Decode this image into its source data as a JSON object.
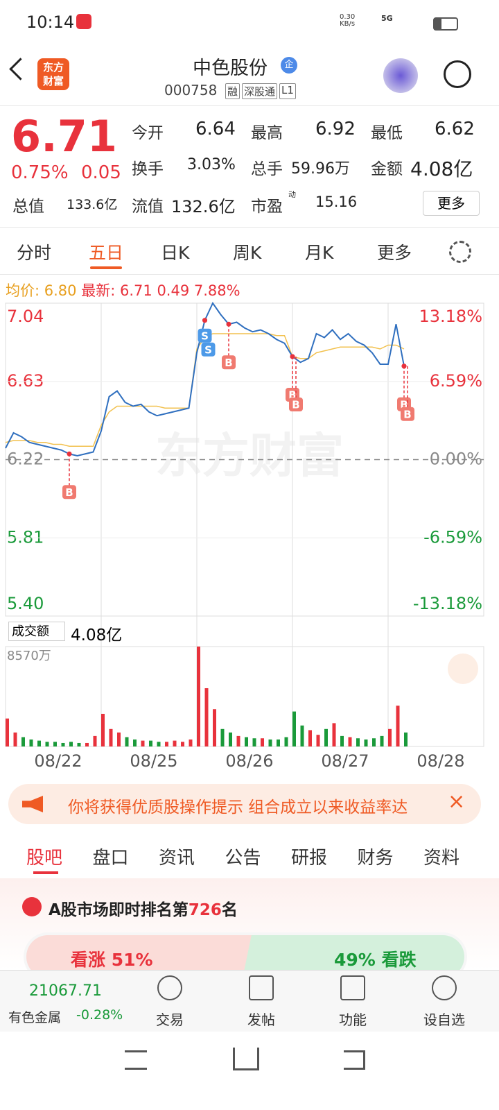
{
  "status": {
    "time": "10:14",
    "net": "0.30",
    "net_unit": "KB/s",
    "signal": "5G"
  },
  "header": {
    "logo": [
      "东方",
      "财富"
    ],
    "title": "中色股份",
    "badge": "企",
    "code": "000758",
    "tags": [
      "融",
      "深股通",
      "L1"
    ]
  },
  "quote": {
    "price": "6.71",
    "pct": "0.75%",
    "change": "0.05",
    "more": "更多",
    "fields": [
      {
        "label": "今开",
        "value": "6.64"
      },
      {
        "label": "最高",
        "value": "6.92"
      },
      {
        "label": "最低",
        "value": "6.62"
      },
      {
        "label": "换手",
        "value": "3.03%"
      },
      {
        "label": "总手",
        "value": "59.96万"
      },
      {
        "label": "金额",
        "value": "4.08亿"
      },
      {
        "label": "总值",
        "value": "133.6亿"
      },
      {
        "label": "流值",
        "value": "132.6亿"
      },
      {
        "label": "市盈",
        "sup": "动",
        "value": "15.16"
      }
    ]
  },
  "tabs": [
    "分时",
    "五日",
    "日K",
    "周K",
    "月K",
    "更多"
  ],
  "info": {
    "avg_label": "均价:",
    "avg": "6.80",
    "latest_label": "最新:",
    "latest": "6.71",
    "change": "0.49",
    "pct": "7.88%"
  },
  "watermark": "东方财富",
  "volume_header": {
    "label": "成交额",
    "total": "4.08亿"
  },
  "chart_data": [
    {
      "type": "line",
      "x": [
        0,
        1,
        2,
        3,
        4,
        5,
        6,
        7,
        8,
        9,
        10,
        11,
        12,
        13,
        14,
        15,
        16,
        17,
        18,
        19,
        20,
        21,
        22,
        23,
        24,
        25,
        26,
        27,
        28,
        29,
        30,
        31,
        32,
        33,
        34,
        35,
        36,
        37,
        38,
        39,
        40,
        41,
        42,
        43,
        44,
        45,
        46,
        47,
        48,
        49,
        50
      ],
      "xlim": [
        0,
        60
      ],
      "ylim": [
        5.4,
        7.04
      ],
      "yticks": [
        7.04,
        6.63,
        6.22,
        5.81,
        {
          "value": 5.4,
          "label": "5.40"
        }
      ],
      "y2lim": [
        -13.18,
        13.18
      ],
      "y2ticks": [
        {
          "value": 13.18,
          "label": "13.18%"
        },
        {
          "value": 6.59,
          "label": "6.59%"
        },
        {
          "value": 0,
          "label": "0.00%"
        },
        {
          "value": -6.59,
          "label": "-6.59%"
        },
        {
          "value": -13.18,
          "label": "-13.18%"
        }
      ],
      "xticks": [
        {
          "value": 6,
          "label": "08/22"
        },
        {
          "value": 18,
          "label": "08/25"
        },
        {
          "value": 30,
          "label": "08/26"
        },
        {
          "value": 42,
          "label": "08/27"
        },
        {
          "value": 54,
          "label": "08/28"
        }
      ],
      "series": [
        {
          "color": "#2f6fbf",
          "values": [
            6.28,
            6.36,
            6.34,
            6.31,
            6.3,
            6.29,
            6.28,
            6.27,
            6.25,
            6.24,
            6.25,
            6.26,
            6.37,
            6.55,
            6.58,
            6.52,
            6.5,
            6.51,
            6.47,
            6.45,
            6.46,
            6.47,
            6.48,
            6.49,
            6.78,
            6.95,
            7.04,
            6.98,
            6.93,
            6.94,
            6.91,
            6.89,
            6.9,
            6.88,
            6.85,
            6.83,
            6.76,
            6.73,
            6.75,
            6.88,
            6.86,
            6.9,
            6.85,
            6.88,
            6.84,
            6.82,
            6.78,
            6.72,
            6.72,
            6.93,
            6.71
          ]
        },
        {
          "color": "#f2c14e",
          "values": [
            6.31,
            6.32,
            6.32,
            6.32,
            6.31,
            6.31,
            6.3,
            6.3,
            6.29,
            6.29,
            6.29,
            6.29,
            6.4,
            6.47,
            6.5,
            6.5,
            6.5,
            6.5,
            6.5,
            6.5,
            6.49,
            6.49,
            6.49,
            6.49,
            6.8,
            6.86,
            6.88,
            6.88,
            6.88,
            6.88,
            6.88,
            6.88,
            6.88,
            6.88,
            6.87,
            6.87,
            6.76,
            6.75,
            6.75,
            6.78,
            6.79,
            6.8,
            6.81,
            6.81,
            6.81,
            6.81,
            6.81,
            6.8,
            6.82,
            6.82,
            6.8
          ]
        }
      ],
      "markers": [
        {
          "label": "B",
          "x": 8
        },
        {
          "label": "S",
          "x": 25
        },
        {
          "label": "S",
          "x": 25
        },
        {
          "label": "B",
          "x": 28
        },
        {
          "label": "B",
          "x": 36
        },
        {
          "label": "B",
          "x": 36
        },
        {
          "label": "B",
          "x": 50
        },
        {
          "label": "B",
          "x": 50
        }
      ]
    },
    {
      "type": "bar",
      "x": [
        0,
        1,
        2,
        3,
        4,
        5,
        6,
        7,
        8,
        9,
        10,
        11,
        12,
        13,
        14,
        15,
        16,
        17,
        18,
        19,
        20,
        21,
        22,
        23,
        24,
        25,
        26,
        27,
        28,
        29,
        30,
        31,
        32,
        33,
        34,
        35,
        36,
        37,
        38,
        39,
        40,
        41,
        42,
        43,
        44,
        45,
        46,
        47,
        48,
        49,
        50
      ],
      "xlim": [
        0,
        60
      ],
      "ylim": [
        0,
        8570
      ],
      "yticks": [
        {
          "value": 8570,
          "label": "8570万"
        }
      ],
      "values": [
        2400,
        1200,
        800,
        600,
        500,
        400,
        400,
        300,
        400,
        300,
        300,
        900,
        2800,
        1500,
        1200,
        800,
        600,
        500,
        500,
        400,
        400,
        500,
        400,
        600,
        8570,
        5000,
        3200,
        1500,
        1200,
        900,
        800,
        700,
        700,
        600,
        600,
        800,
        3000,
        1800,
        1400,
        1000,
        1500,
        2000,
        900,
        800,
        700,
        600,
        700,
        900,
        1500,
        3500,
        1200
      ],
      "colors": [
        "#e8323c",
        "#e8323c",
        "#1a9a3a",
        "#1a9a3a",
        "#1a9a3a",
        "#1a9a3a",
        "#1a9a3a",
        "#1a9a3a",
        "#1a9a3a",
        "#1a9a3a",
        "#e8323c",
        "#e8323c",
        "#e8323c",
        "#e8323c",
        "#e8323c",
        "#1a9a3a",
        "#1a9a3a",
        "#e8323c",
        "#1a9a3a",
        "#1a9a3a",
        "#e8323c",
        "#e8323c",
        "#e8323c",
        "#e8323c",
        "#e8323c",
        "#e8323c",
        "#e8323c",
        "#1a9a3a",
        "#1a9a3a",
        "#e8323c",
        "#1a9a3a",
        "#1a9a3a",
        "#e8323c",
        "#1a9a3a",
        "#1a9a3a",
        "#1a9a3a",
        "#1a9a3a",
        "#1a9a3a",
        "#e8323c",
        "#e8323c",
        "#1a9a3a",
        "#e8323c",
        "#1a9a3a",
        "#e8323c",
        "#1a9a3a",
        "#1a9a3a",
        "#1a9a3a",
        "#1a9a3a",
        "#e8323c",
        "#e8323c",
        "#1a9a3a"
      ]
    }
  ],
  "banner": "你将获得优质股操作提示 组合成立以来收益率达",
  "sections": [
    "股吧",
    "盘口",
    "资讯",
    "公告",
    "研报",
    "财务",
    "资料"
  ],
  "rank": {
    "prefix": "A股市场即时排名第",
    "number": "726",
    "suffix": "名"
  },
  "vote": {
    "up_label": "看涨",
    "up": "51%",
    "down": "49%",
    "down_label": "看跌"
  },
  "bottom": {
    "index": "21067.71",
    "name": "有色金属",
    "pct": "-0.28%",
    "items": [
      "交易",
      "发帖",
      "功能",
      "设自选"
    ]
  }
}
